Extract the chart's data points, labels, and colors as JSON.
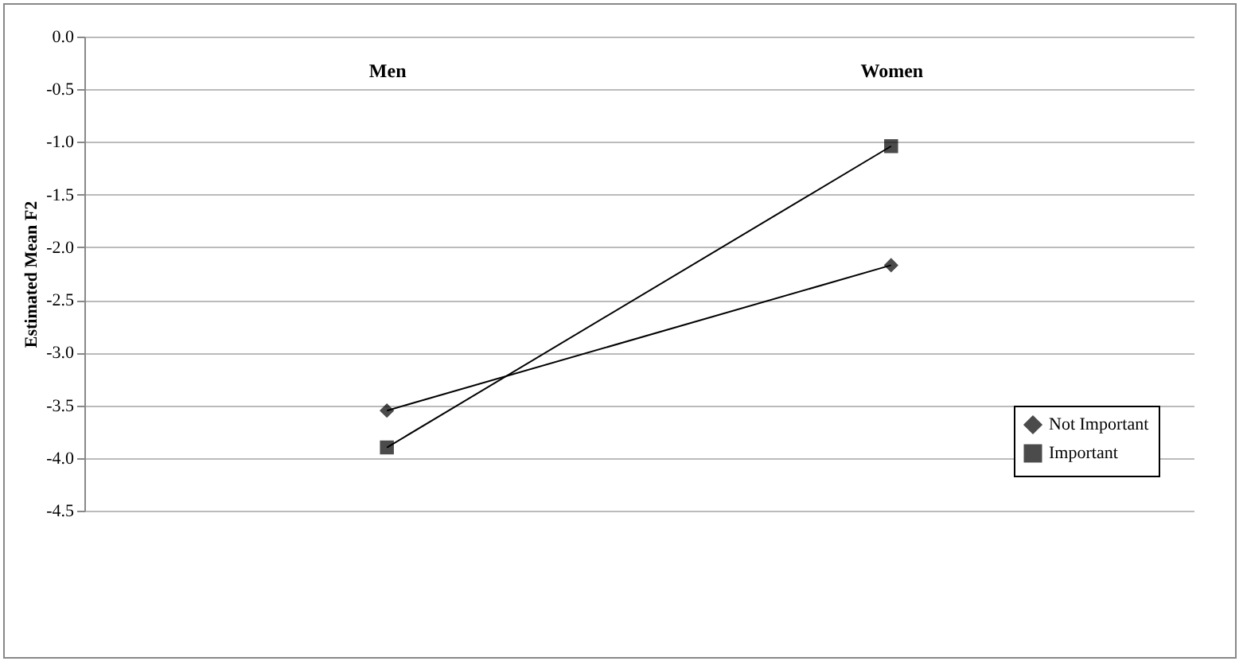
{
  "chart_data": {
    "type": "line",
    "ylabel": "Estimated Mean F2",
    "categories": [
      "Men",
      "Women"
    ],
    "series": [
      {
        "name": "Not Important",
        "color": "#000000",
        "marker": "diamond",
        "values": [
          -3.55,
          -2.17
        ]
      },
      {
        "name": "Important",
        "color": "#000000",
        "marker": "square",
        "values": [
          -3.9,
          -1.04
        ]
      }
    ],
    "ylim": [
      -4.5,
      0
    ],
    "yticks": [
      {
        "value": 0,
        "label": "0.0"
      },
      {
        "value": -0.5,
        "label": "-0.5"
      },
      {
        "value": -1,
        "label": "-1.0"
      },
      {
        "value": -1.5,
        "label": "-1.5"
      },
      {
        "value": -2,
        "label": "-2.0"
      },
      {
        "value": -2.5,
        "label": "-2.5"
      },
      {
        "value": -3,
        "label": "-3.0"
      },
      {
        "value": -3.5,
        "label": "-3.5"
      },
      {
        "value": -4,
        "label": "-4.0"
      },
      {
        "value": -4.5,
        "label": "-4.5"
      }
    ],
    "grid": "y",
    "legend": "bottom right",
    "line_style": "solid"
  }
}
